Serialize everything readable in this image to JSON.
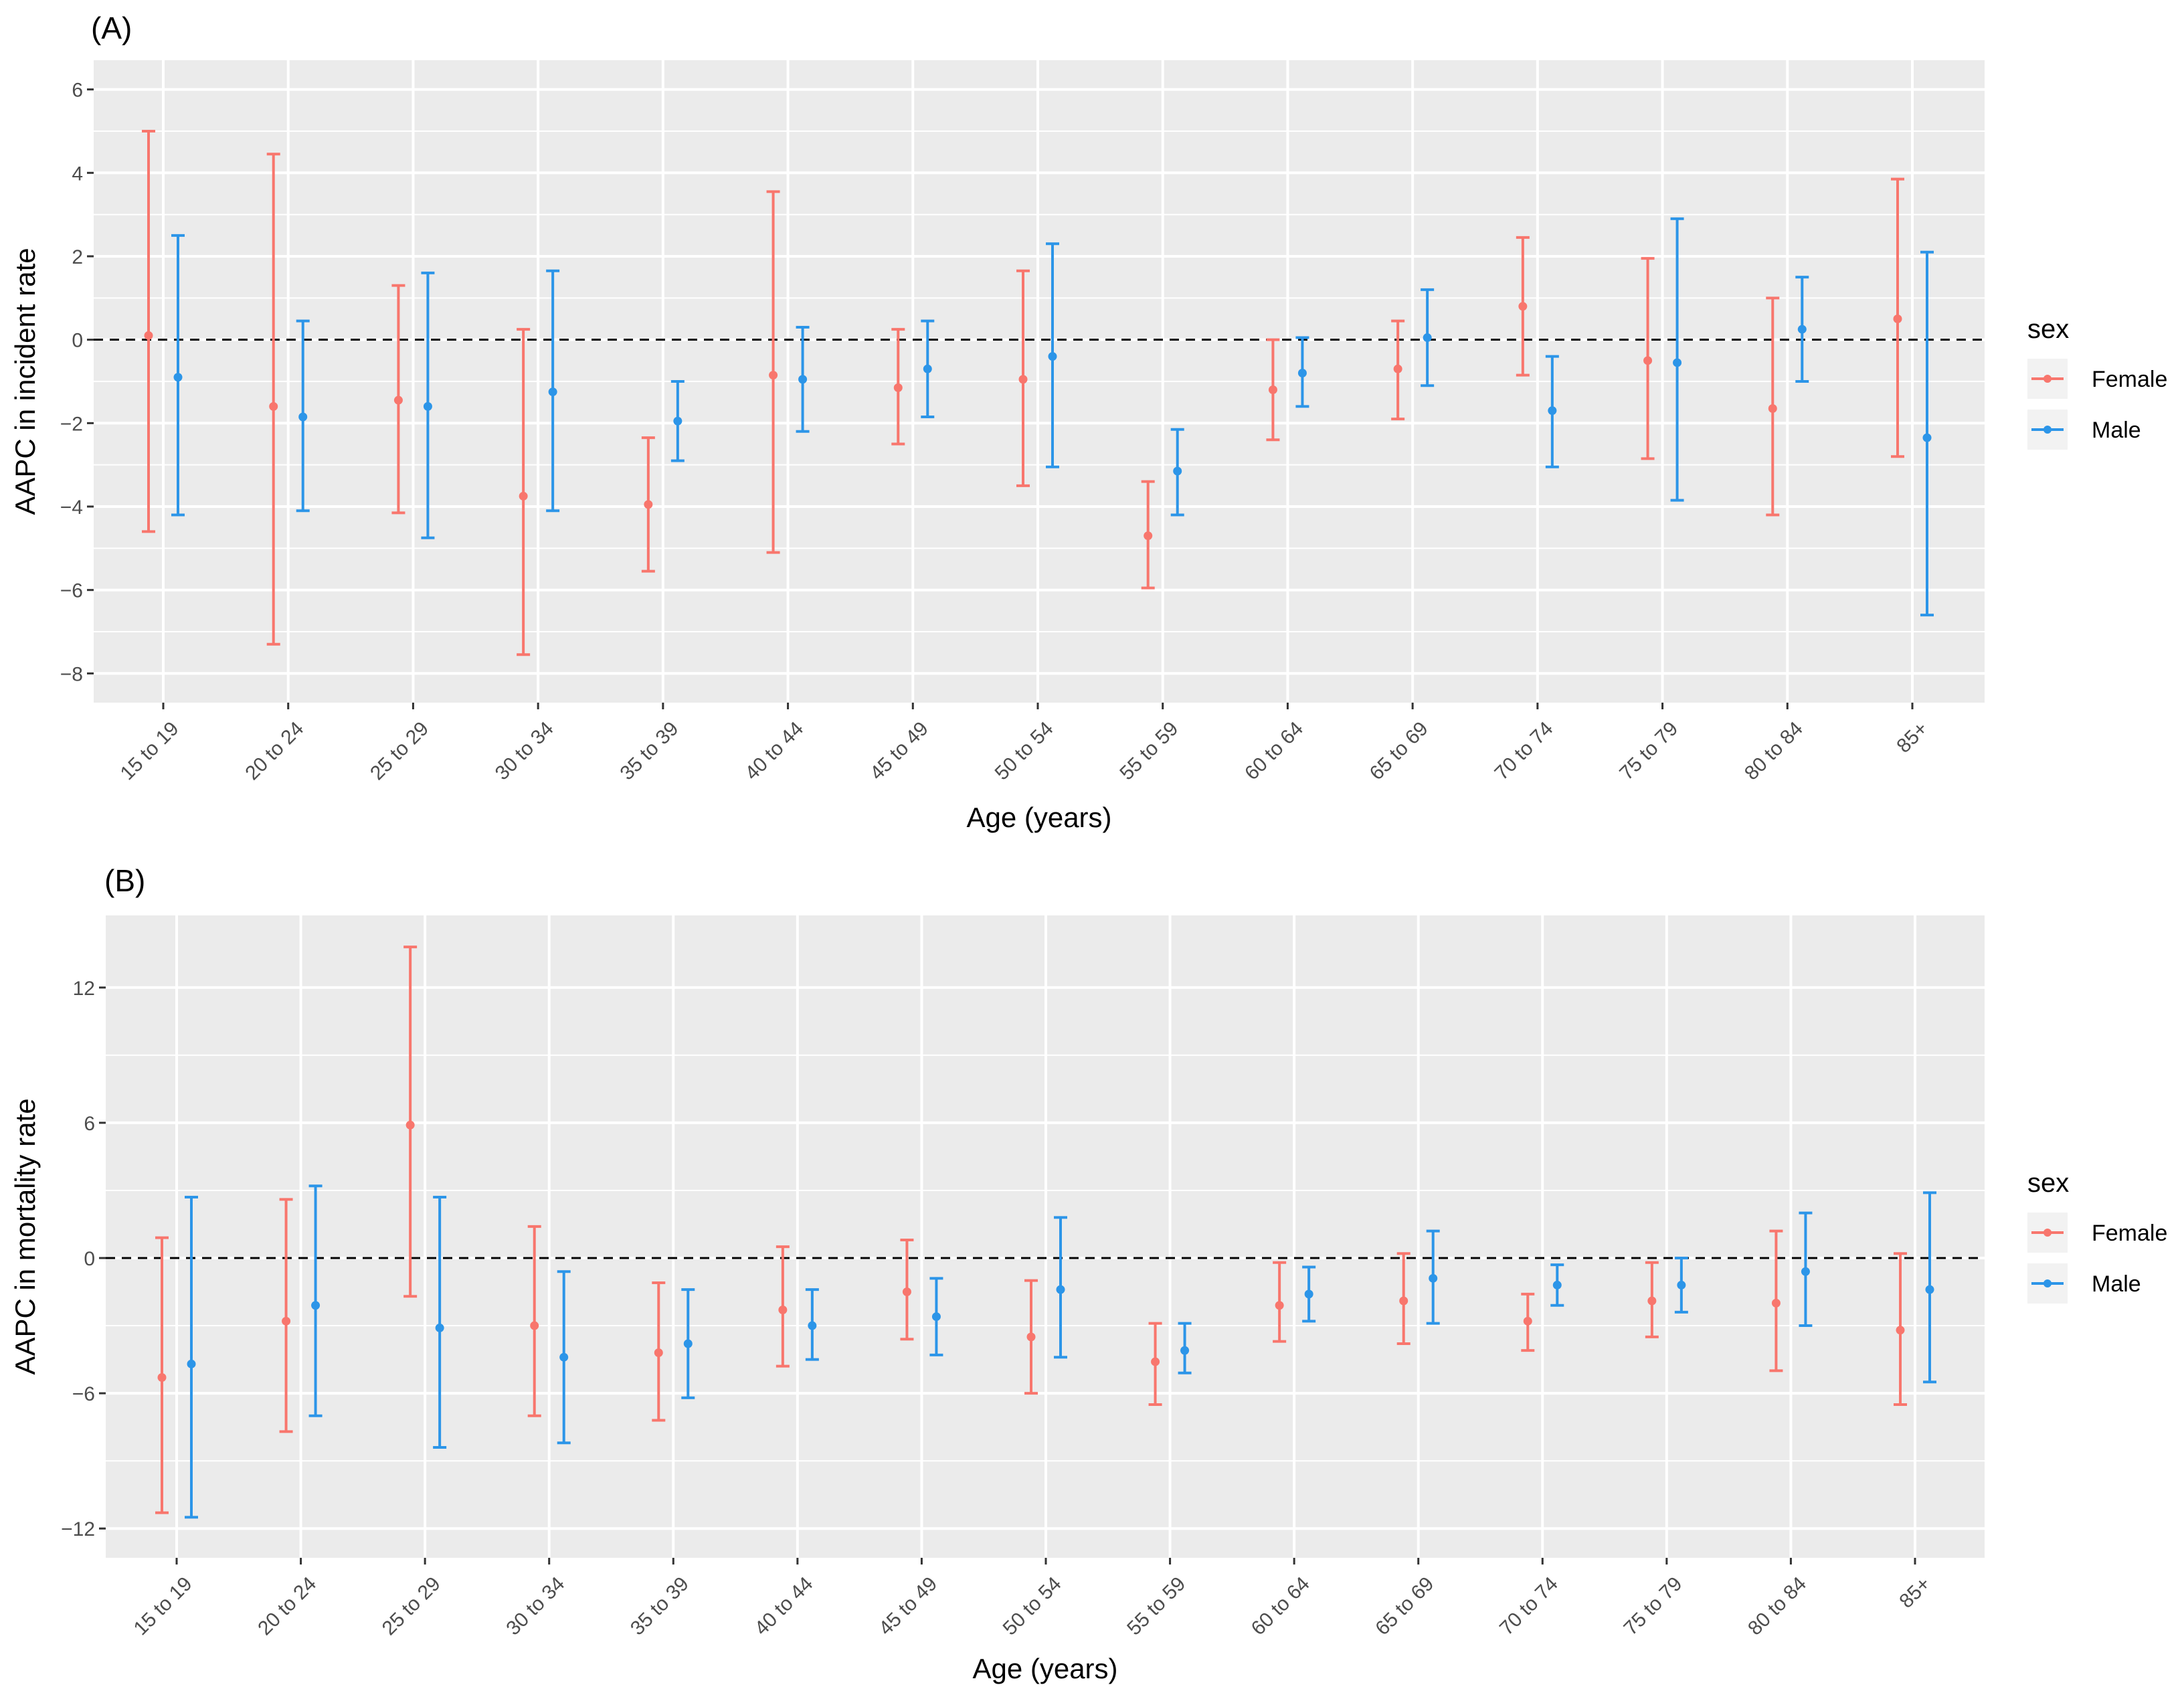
{
  "chart_data": [
    {
      "panel_label": "(A)",
      "type": "errorbar",
      "xlabel": "Age (years)",
      "ylabel": "AAPC in incident rate",
      "ylim": [
        -8.7,
        6.7
      ],
      "yticks": [
        -8,
        -6,
        -4,
        -2,
        0,
        2,
        4,
        6
      ],
      "ytick_labels": [
        "−8",
        "−6",
        "−4",
        "−2",
        "0",
        "2",
        "4",
        "6"
      ],
      "reference_line": 0,
      "categories": [
        "15 to 19",
        "20 to 24",
        "25 to 29",
        "30 to 34",
        "35 to 39",
        "40 to 44",
        "45 to 49",
        "50 to 54",
        "55 to 59",
        "60 to 64",
        "65 to 69",
        "70 to 74",
        "75 to 79",
        "80 to 84",
        "85+"
      ],
      "legend": {
        "title": "sex",
        "position": "right"
      },
      "series": [
        {
          "name": "Female",
          "color": "#F8766D",
          "estimate": [
            0.1,
            -1.6,
            -1.45,
            -3.75,
            -3.95,
            -0.85,
            -1.15,
            -0.95,
            -4.7,
            -1.2,
            -0.7,
            0.8,
            -0.5,
            -1.65,
            0.5
          ],
          "lower": [
            -4.6,
            -7.3,
            -4.15,
            -7.55,
            -5.55,
            -5.1,
            -2.5,
            -3.5,
            -5.95,
            -2.4,
            -1.9,
            -0.85,
            -2.85,
            -4.2,
            -2.8
          ],
          "upper": [
            5.0,
            4.45,
            1.3,
            0.25,
            -2.35,
            3.55,
            0.25,
            1.65,
            -3.4,
            0.0,
            0.45,
            2.45,
            1.95,
            1.0,
            3.85
          ]
        },
        {
          "name": "Male",
          "color": "#2C95E8",
          "estimate": [
            -0.9,
            -1.85,
            -1.6,
            -1.25,
            -1.95,
            -0.95,
            -0.7,
            -0.4,
            -3.15,
            -0.8,
            0.05,
            -1.7,
            -0.55,
            0.25,
            -2.35
          ],
          "lower": [
            -4.2,
            -4.1,
            -4.75,
            -4.1,
            -2.9,
            -2.2,
            -1.85,
            -3.05,
            -4.2,
            -1.6,
            -1.1,
            -3.05,
            -3.85,
            -1.0,
            -6.6
          ],
          "upper": [
            2.5,
            0.45,
            1.6,
            1.65,
            -1.0,
            0.3,
            0.45,
            2.3,
            -2.15,
            0.05,
            1.2,
            -0.4,
            2.9,
            1.5,
            2.1
          ]
        }
      ]
    },
    {
      "panel_label": "(B)",
      "type": "errorbar",
      "xlabel": "Age (years)",
      "ylabel": "AAPC in mortality rate",
      "ylim": [
        -13.3,
        15.2
      ],
      "yticks": [
        -12,
        -6,
        0,
        6,
        12
      ],
      "ytick_labels": [
        "−12",
        "−6",
        "0",
        "6",
        "12"
      ],
      "reference_line": 0,
      "categories": [
        "15 to 19",
        "20 to 24",
        "25 to 29",
        "30 to 34",
        "35 to 39",
        "40 to 44",
        "45 to 49",
        "50 to 54",
        "55 to 59",
        "60 to 64",
        "65 to 69",
        "70 to 74",
        "75 to 79",
        "80 to 84",
        "85+"
      ],
      "legend": {
        "title": "sex",
        "position": "right"
      },
      "series": [
        {
          "name": "Female",
          "color": "#F8766D",
          "estimate": [
            -5.3,
            -2.8,
            5.9,
            -3.0,
            -4.2,
            -2.3,
            -1.5,
            -3.5,
            -4.6,
            -2.1,
            -1.9,
            -2.8,
            -1.9,
            -2.0,
            -3.2
          ],
          "lower": [
            -11.3,
            -7.7,
            -1.7,
            -7.0,
            -7.2,
            -4.8,
            -3.6,
            -6.0,
            -6.5,
            -3.7,
            -3.8,
            -4.1,
            -3.5,
            -5.0,
            -6.5
          ],
          "upper": [
            0.9,
            2.6,
            13.8,
            1.4,
            -1.1,
            0.5,
            0.8,
            -1.0,
            -2.9,
            -0.2,
            0.2,
            -1.6,
            -0.2,
            1.2,
            0.2
          ]
        },
        {
          "name": "Male",
          "color": "#2C95E8",
          "estimate": [
            -4.7,
            -2.1,
            -3.1,
            -4.4,
            -3.8,
            -3.0,
            -2.6,
            -1.4,
            -4.1,
            -1.6,
            -0.9,
            -1.2,
            -1.2,
            -0.6,
            -1.4
          ],
          "lower": [
            -11.5,
            -7.0,
            -8.4,
            -8.2,
            -6.2,
            -4.5,
            -4.3,
            -4.4,
            -5.1,
            -2.8,
            -2.9,
            -2.1,
            -2.4,
            -3.0,
            -5.5
          ],
          "upper": [
            2.7,
            3.2,
            2.7,
            -0.6,
            -1.4,
            -1.4,
            -0.9,
            1.8,
            -2.9,
            -0.4,
            1.2,
            -0.3,
            0.0,
            2.0,
            2.9
          ]
        }
      ]
    }
  ]
}
